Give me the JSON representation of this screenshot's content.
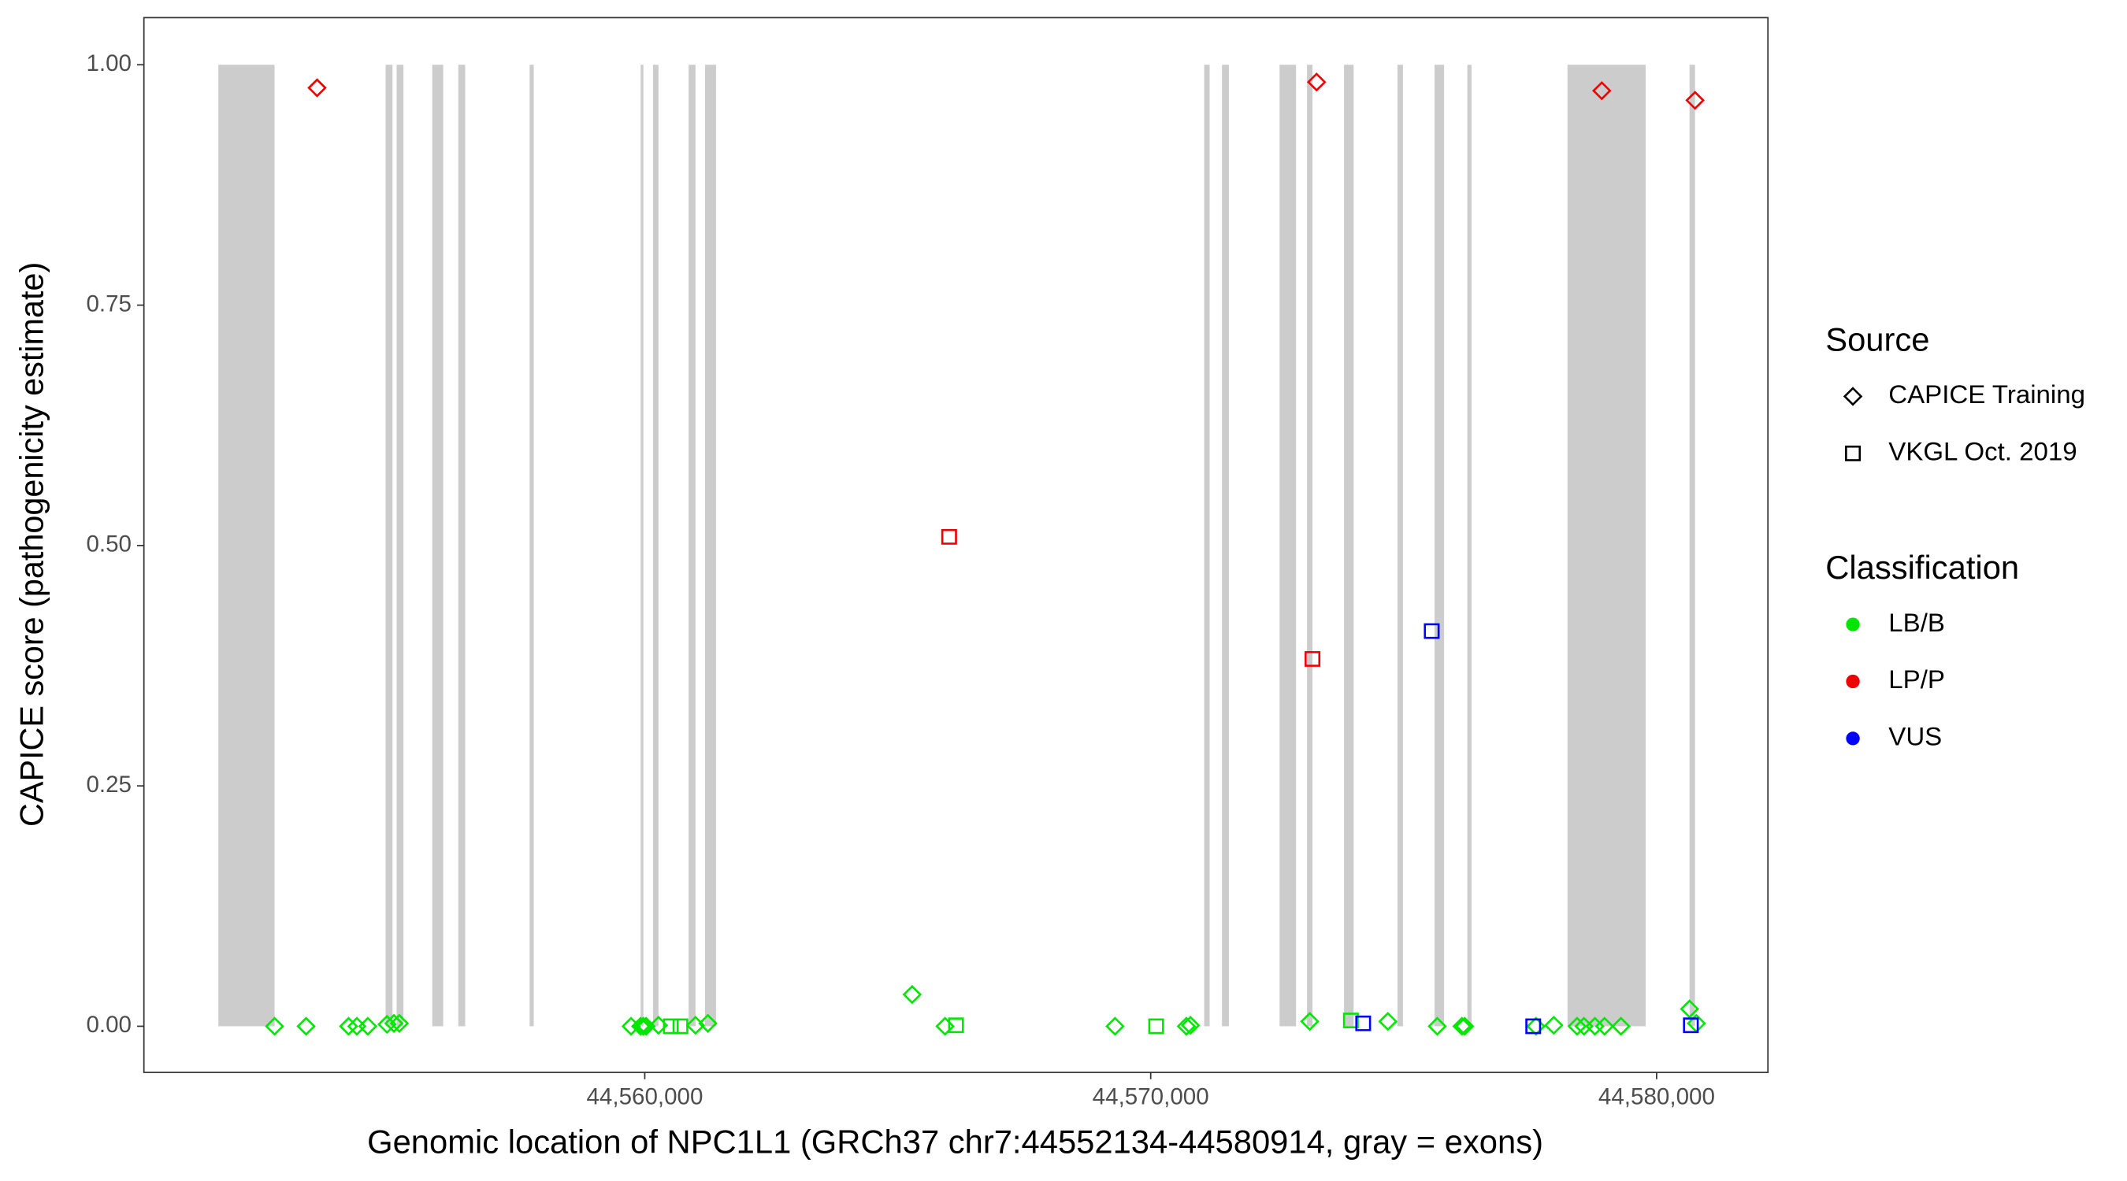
{
  "chart_data": {
    "type": "scatter",
    "x_label": "Genomic location of NPC1L1 (GRCh37 chr7:44552134-44580914, gray = exons)",
    "y_label": "CAPICE score (pathogenicity estimate)",
    "xlim": [
      44550100,
      44582200
    ],
    "ylim": [
      -0.048,
      1.049
    ],
    "xticks": [
      {
        "value": 44560000,
        "label": "44,560,000"
      },
      {
        "value": 44570000,
        "label": "44,570,000"
      },
      {
        "value": 44580000,
        "label": "44,580,000"
      }
    ],
    "yticks": [
      {
        "value": 0,
        "label": "0.00"
      },
      {
        "value": 0.25,
        "label": "0.25"
      },
      {
        "value": 0.5,
        "label": "0.50"
      },
      {
        "value": 0.75,
        "label": "0.75"
      },
      {
        "value": 1,
        "label": "1.00"
      }
    ],
    "exon_color": "#cccccc",
    "exons": [
      [
        44551572,
        44552683
      ],
      [
        44554878,
        44555014
      ],
      [
        44555095,
        44555230
      ],
      [
        44555799,
        44556016
      ],
      [
        44556314,
        44556450
      ],
      [
        44557724,
        44557805
      ],
      [
        44559919,
        44559973
      ],
      [
        44560163,
        44560271
      ],
      [
        44560867,
        44561003
      ],
      [
        44561192,
        44561409
      ],
      [
        44571057,
        44571165
      ],
      [
        44571409,
        44571545
      ],
      [
        44572547,
        44572873
      ],
      [
        44573089,
        44573198
      ],
      [
        44573821,
        44574011
      ],
      [
        44574878,
        44574986
      ],
      [
        44575610,
        44575799
      ],
      [
        44576260,
        44576341
      ],
      [
        44578238,
        44579783
      ],
      [
        44580650,
        44580759
      ]
    ],
    "series": [
      {
        "shape": "diamond",
        "color": "#00e600",
        "x": [
          44552683,
          44553306,
          44554146,
          44554309,
          44554526,
          44554905,
          44555041,
          44555149,
          44559729,
          44559919,
          44559973,
          44560027,
          44560271,
          44561003,
          44561247,
          44565285,
          44565935,
          44569295,
          44570705,
          44570786,
          44573144,
          44574688,
          44575664,
          44576152,
          44576206,
          44577615,
          44577967,
          44578428,
          44578564,
          44578780,
          44578970,
          44579295,
          44580650,
          44580786
        ],
        "y": [
          0,
          0,
          0,
          0,
          0,
          0.002,
          0.003,
          0.003,
          0,
          0,
          0,
          0,
          0.001,
          0.001,
          0.003,
          0.033,
          0,
          0,
          0,
          0.001,
          0.005,
          0.005,
          0,
          0,
          0,
          0,
          0.001,
          0,
          0,
          0,
          0,
          0,
          0.018,
          0.003
        ]
      },
      {
        "shape": "square",
        "color": "#00e600",
        "x": [
          44560515,
          44560705,
          44566152,
          44570108,
          44573957
        ],
        "y": [
          0,
          0,
          0.001,
          0,
          0.006
        ]
      },
      {
        "shape": "diamond",
        "color": "#ee0000",
        "x": [
          44553523,
          44573279,
          44578916,
          44580759
        ],
        "y": [
          0.976,
          0.982,
          0.973,
          0.963
        ]
      },
      {
        "shape": "square",
        "color": "#ee0000",
        "x": [
          44566016,
          44573198
        ],
        "y": [
          0.509,
          0.382
        ]
      },
      {
        "shape": "square",
        "color": "#0000ff",
        "x": [
          44574200,
          44575555,
          44577561,
          44580677
        ],
        "y": [
          0.003,
          0.411,
          0,
          0.001
        ]
      }
    ],
    "legend_source": {
      "title": "Source",
      "items": [
        {
          "label": "CAPICE Training",
          "shape": "diamond"
        },
        {
          "label": "VKGL Oct. 2019",
          "shape": "square"
        }
      ]
    },
    "legend_classification": {
      "title": "Classification",
      "items": [
        {
          "label": "LB/B",
          "color": "#00e600"
        },
        {
          "label": "LP/P",
          "color": "#ee0000"
        },
        {
          "label": "VUS",
          "color": "#0000ff"
        }
      ]
    }
  }
}
